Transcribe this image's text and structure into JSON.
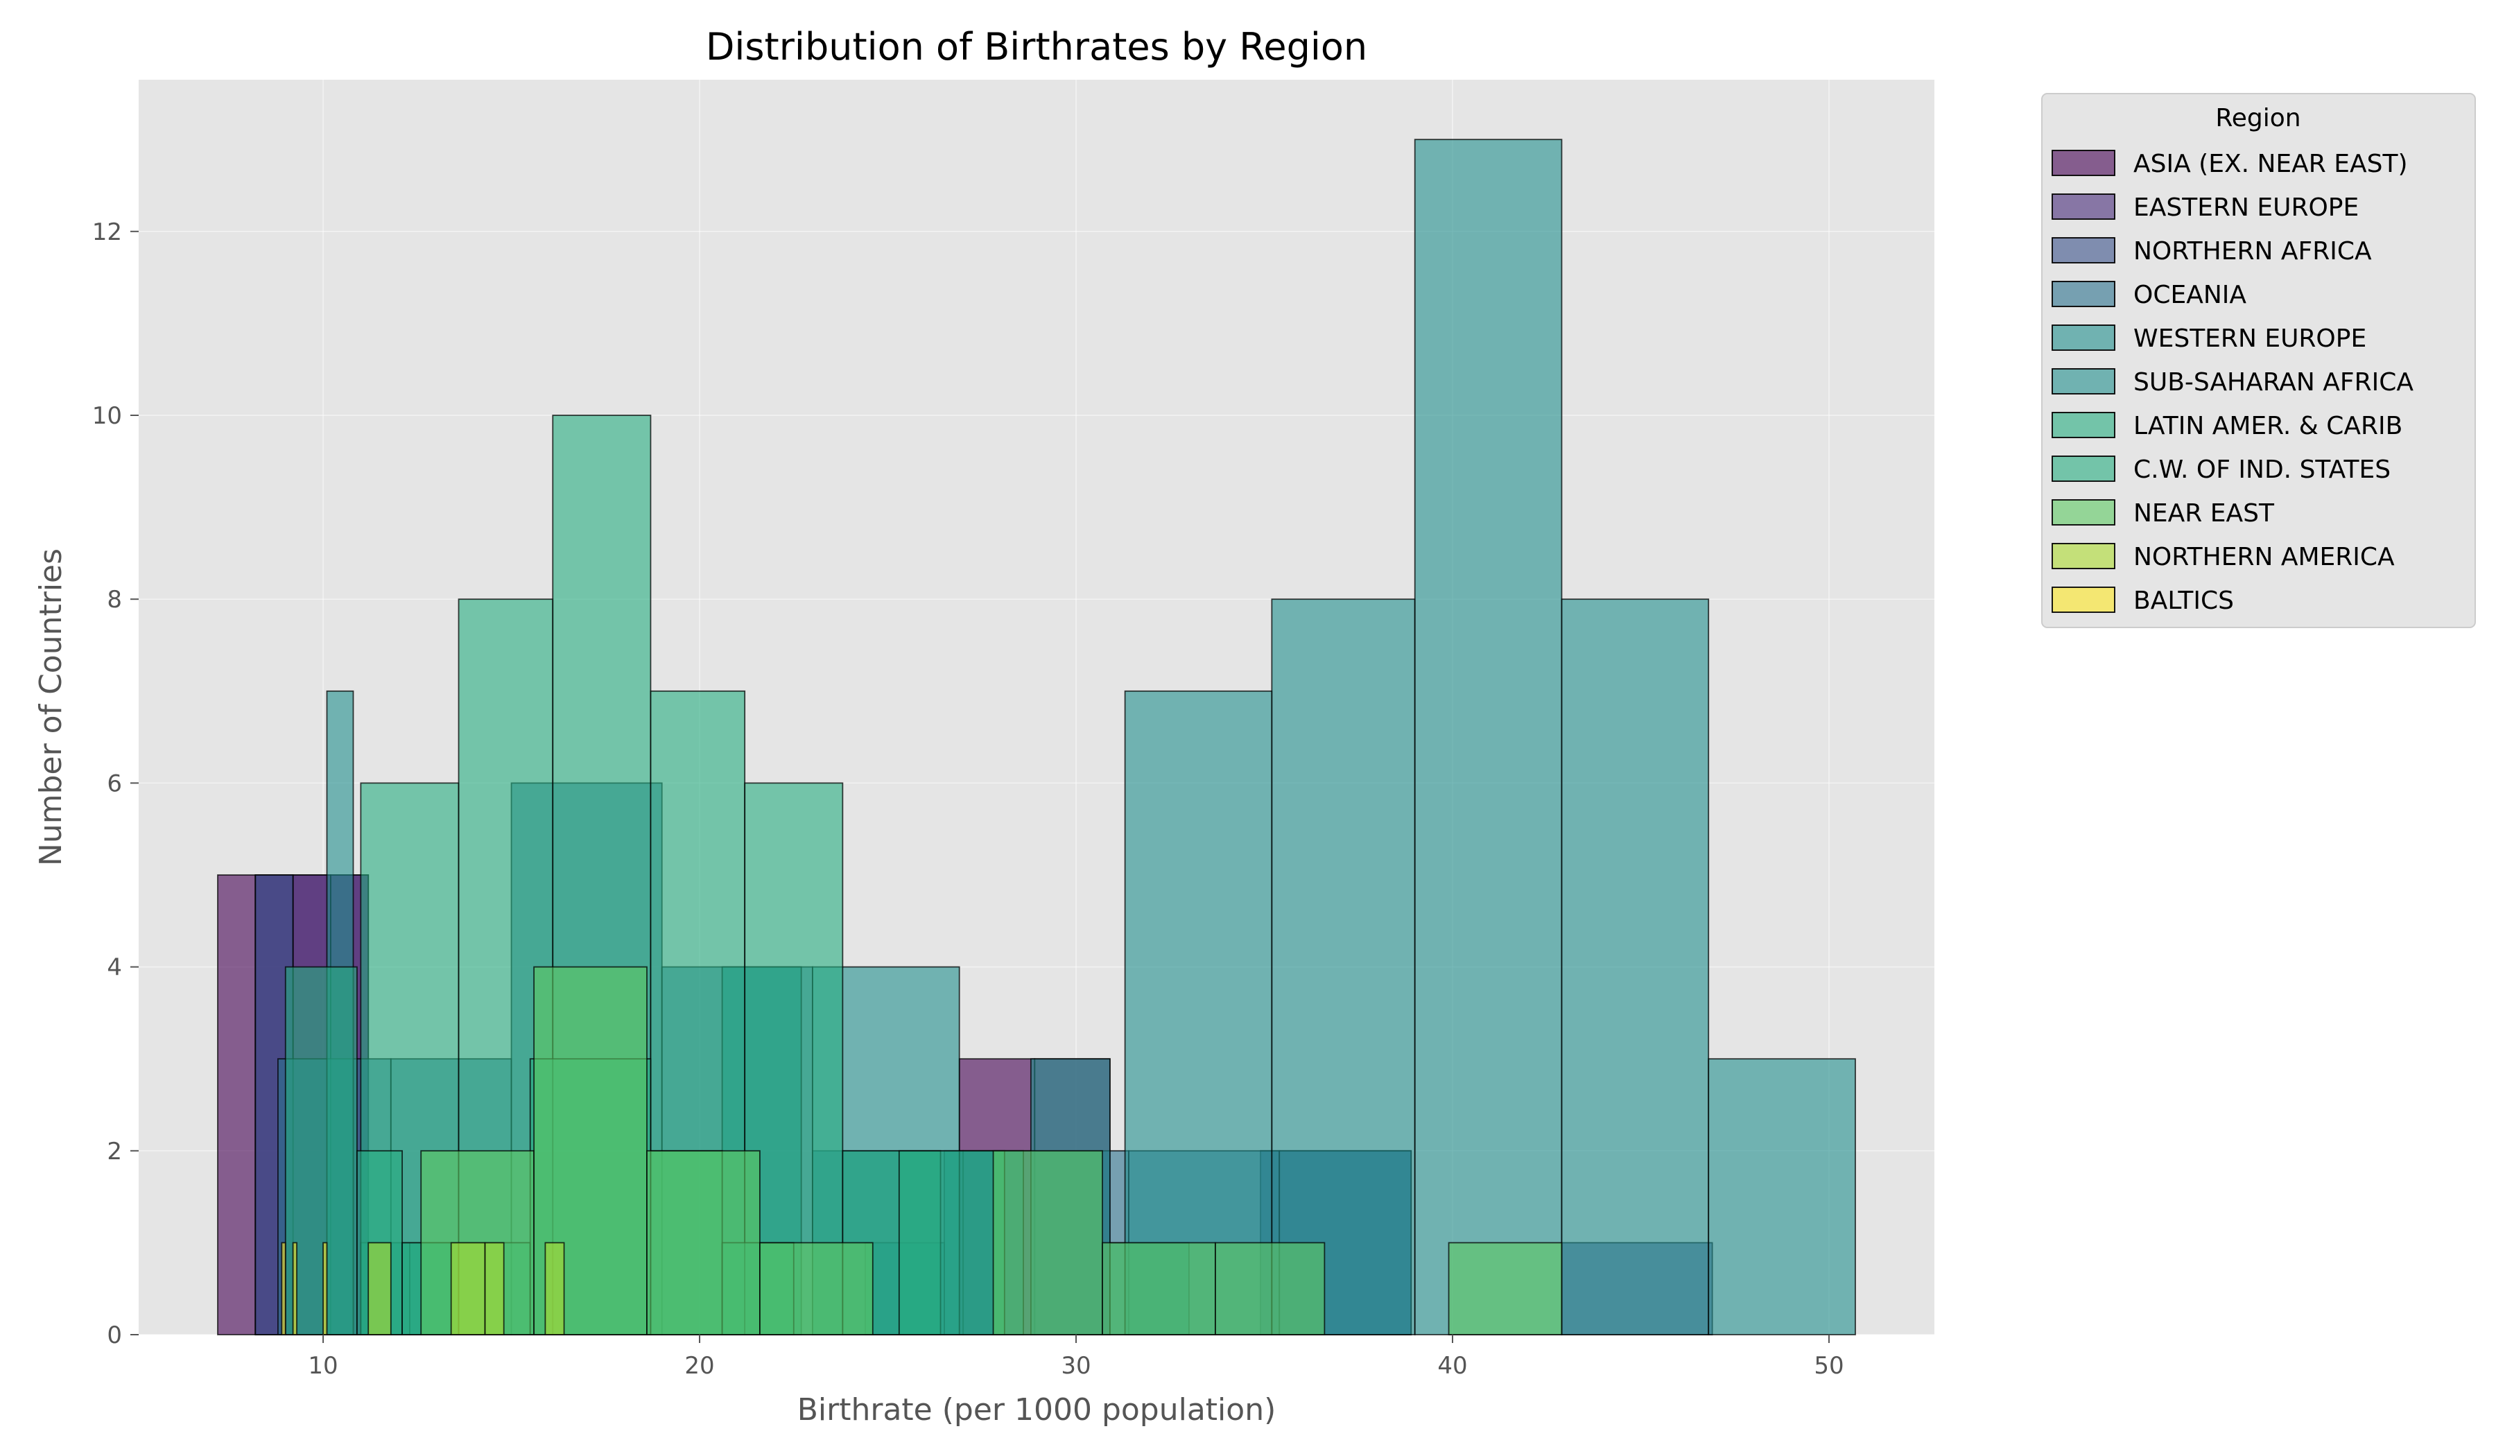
{
  "chart_data": {
    "type": "bar",
    "subtype": "overlaid-histogram",
    "title": "Distribution of Birthrates by Region",
    "xlabel": "Birthrate (per 1000 population)",
    "ylabel": "Number of Countries",
    "xlim": [
      5.1,
      52.8
    ],
    "ylim": [
      0,
      13.65
    ],
    "xticks": [
      10,
      20,
      30,
      40,
      50
    ],
    "yticks": [
      0,
      2,
      4,
      6,
      8,
      10,
      12
    ],
    "grid": true,
    "legend": {
      "title": "Region",
      "placement": "outside-top-right"
    },
    "series": [
      {
        "name": "ASIA (EX. NEAR EAST)",
        "color": "#440154",
        "bins": [
          [
            7.2,
            8.2,
            5
          ],
          [
            8.2,
            9.2,
            5
          ],
          [
            9.2,
            10.2,
            5
          ],
          [
            10.2,
            11.2,
            5
          ],
          [
            26.9,
            28.9,
            3
          ],
          [
            28.9,
            30.9,
            3
          ]
        ]
      },
      {
        "name": "EASTERN EUROPE",
        "color": "#472c7a",
        "bins": [
          [
            8.2,
            9.2,
            5
          ],
          [
            9.2,
            10.2,
            5
          ],
          [
            10.2,
            11.2,
            5
          ]
        ]
      },
      {
        "name": "NORTHERN AFRICA",
        "color": "#3b518b",
        "bins": [
          [
            8.2,
            9.2,
            5
          ],
          [
            34.9,
            38.9,
            2
          ],
          [
            42.9,
            46.9,
            1
          ]
        ]
      },
      {
        "name": "OCEANIA",
        "color": "#2c718e",
        "bins": [
          [
            8.8,
            11.8,
            3
          ],
          [
            11.8,
            15.0,
            3
          ],
          [
            15.0,
            19.0,
            6
          ],
          [
            19.0,
            23.0,
            4
          ],
          [
            23.0,
            27.0,
            2
          ],
          [
            27.0,
            31.4,
            2
          ],
          [
            31.4,
            35.4,
            2
          ],
          [
            35.4,
            38.9,
            2
          ]
        ]
      },
      {
        "name": "WESTERN EUROPE",
        "color": "#21908d",
        "bins": [
          [
            10.1,
            10.8,
            7
          ],
          [
            20.6,
            22.7,
            4
          ],
          [
            28.8,
            30.9,
            3
          ],
          [
            30.9,
            33.0,
            1
          ],
          [
            26.5,
            28.6,
            2
          ],
          [
            24.4,
            26.5,
            1
          ],
          [
            11.0,
            12.3,
            1
          ],
          [
            12.3,
            13.6,
            1
          ]
        ]
      },
      {
        "name": "SUB-SAHARAN AFRICA",
        "color": "#21908d",
        "bins": [
          [
            23.0,
            26.9,
            4
          ],
          [
            31.3,
            35.2,
            7
          ],
          [
            35.2,
            39.0,
            8
          ],
          [
            39.0,
            42.9,
            13
          ],
          [
            42.9,
            46.8,
            8
          ],
          [
            46.8,
            50.7,
            3
          ]
        ]
      },
      {
        "name": "LATIN AMER. & CARIB",
        "color": "#27ad81",
        "bins": [
          [
            11.0,
            13.6,
            6
          ],
          [
            13.6,
            16.1,
            8
          ],
          [
            16.1,
            18.7,
            10
          ],
          [
            18.7,
            21.2,
            7
          ],
          [
            21.2,
            23.8,
            6
          ],
          [
            23.8,
            26.4,
            2
          ]
        ]
      },
      {
        "name": "C.W. OF IND. STATES",
        "color": "#27ad81",
        "bins": [
          [
            9.0,
            10.9,
            4
          ],
          [
            10.9,
            12.1,
            2
          ],
          [
            12.1,
            13.6,
            1
          ],
          [
            13.6,
            15.5,
            1
          ],
          [
            15.5,
            18.7,
            3
          ],
          [
            18.7,
            20.6,
            2
          ],
          [
            20.6,
            22.5,
            1
          ],
          [
            25.3,
            28.1,
            2
          ]
        ]
      },
      {
        "name": "NEAR EAST",
        "color": "#5ec962",
        "bins": [
          [
            12.6,
            15.6,
            2
          ],
          [
            15.6,
            18.6,
            4
          ],
          [
            18.6,
            21.6,
            2
          ],
          [
            21.6,
            24.6,
            1
          ],
          [
            27.8,
            30.7,
            2
          ],
          [
            30.7,
            33.7,
            1
          ],
          [
            33.7,
            36.6,
            1
          ],
          [
            39.9,
            42.9,
            1
          ]
        ]
      },
      {
        "name": "NORTHERN AMERICA",
        "color": "#addc30",
        "bins": [
          [
            11.2,
            11.8,
            1
          ],
          [
            13.4,
            14.3,
            1
          ],
          [
            14.3,
            14.8,
            1
          ],
          [
            15.9,
            16.4,
            1
          ]
        ]
      },
      {
        "name": "BALTICS",
        "color": "#fde725",
        "bins": [
          [
            8.9,
            9.0,
            1
          ],
          [
            9.2,
            9.3,
            1
          ],
          [
            10.0,
            10.1,
            1
          ]
        ]
      }
    ]
  }
}
